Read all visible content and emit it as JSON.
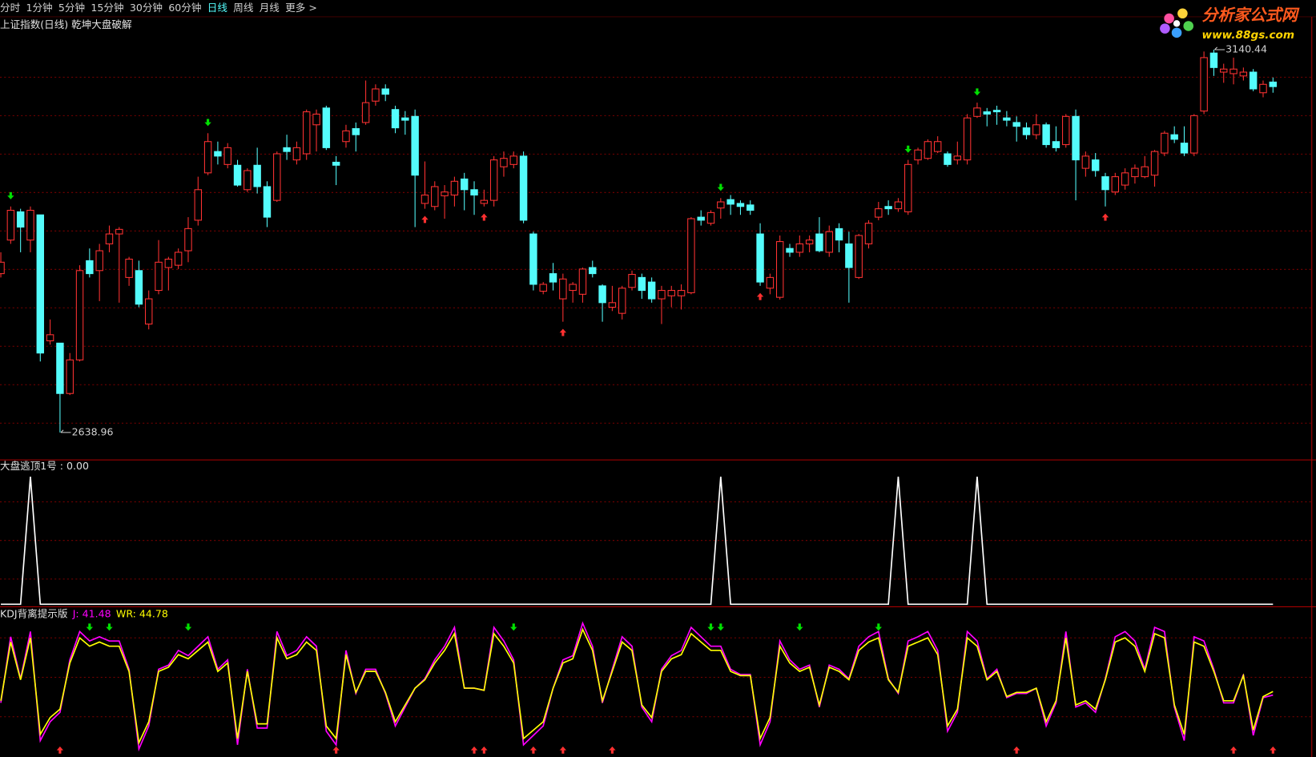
{
  "toolbar": {
    "items": [
      {
        "label": "分时"
      },
      {
        "label": "1分钟"
      },
      {
        "label": "5分钟"
      },
      {
        "label": "15分钟"
      },
      {
        "label": "30分钟"
      },
      {
        "label": "60分钟"
      },
      {
        "label": "日线",
        "active": true
      },
      {
        "label": "周线"
      },
      {
        "label": "月线"
      },
      {
        "label": "更多 >"
      }
    ]
  },
  "logo": {
    "name": "分析家公式网",
    "url": "www.88gs.com"
  },
  "chart_data": [
    {
      "type": "candlestick",
      "title": "上证指数(日线) 乾坤大盘破解",
      "up_color": "#ff3232",
      "down_color": "#54fcfc",
      "ylim": [
        2603,
        3156
      ],
      "high_label": "3140.44",
      "low_label": "2638.96",
      "ohlc": [
        [
          2847,
          2875,
          2842,
          2862
        ],
        [
          2891,
          2935,
          2886,
          2930
        ],
        [
          2928,
          2932,
          2875,
          2908
        ],
        [
          2891,
          2935,
          2875,
          2930
        ],
        [
          2924,
          2924,
          2732,
          2743
        ],
        [
          2759,
          2787,
          2754,
          2767
        ],
        [
          2756,
          2756,
          2638.96,
          2690
        ],
        [
          2690,
          2743,
          2688,
          2734
        ],
        [
          2734,
          2858,
          2732,
          2851
        ],
        [
          2864,
          2880,
          2842,
          2847
        ],
        [
          2851,
          2886,
          2811,
          2877
        ],
        [
          2886,
          2910,
          2875,
          2899
        ],
        [
          2899,
          2908,
          2809,
          2905
        ],
        [
          2842,
          2869,
          2831,
          2866
        ],
        [
          2851,
          2864,
          2803,
          2807
        ],
        [
          2781,
          2825,
          2774,
          2814
        ],
        [
          2825,
          2891,
          2820,
          2862
        ],
        [
          2855,
          2869,
          2825,
          2866
        ],
        [
          2858,
          2880,
          2853,
          2875
        ],
        [
          2877,
          2921,
          2862,
          2906
        ],
        [
          2917,
          2974,
          2910,
          2957
        ],
        [
          2979,
          3031,
          2976,
          3020
        ],
        [
          3007,
          3020,
          2990,
          3001
        ],
        [
          2990,
          3018,
          2985,
          3012
        ],
        [
          2989,
          2996,
          2961,
          2963
        ],
        [
          2957,
          2985,
          2954,
          2982
        ],
        [
          2989,
          3012,
          2952,
          2961
        ],
        [
          2961,
          2968,
          2908,
          2921
        ],
        [
          2943,
          3007,
          2941,
          3004
        ],
        [
          3012,
          3029,
          2996,
          3007
        ],
        [
          2996,
          3020,
          2990,
          3012
        ],
        [
          3004,
          3062,
          2996,
          3059
        ],
        [
          3042,
          3062,
          3007,
          3056
        ],
        [
          3064,
          3067,
          3009,
          3012
        ],
        [
          2993,
          3001,
          2963,
          2989
        ],
        [
          3020,
          3042,
          3012,
          3034
        ],
        [
          3037,
          3045,
          3007,
          3029
        ],
        [
          3045,
          3100,
          3042,
          3071
        ],
        [
          3073,
          3095,
          3067,
          3089
        ],
        [
          3089,
          3095,
          3073,
          3082
        ],
        [
          3062,
          3067,
          3031,
          3038
        ],
        [
          3051,
          3060,
          3029,
          3048
        ],
        [
          3053,
          3062,
          2908,
          2976
        ],
        [
          2939,
          2994,
          2932,
          2950
        ],
        [
          2935,
          2968,
          2930,
          2961
        ],
        [
          2949,
          2963,
          2919,
          2954
        ],
        [
          2950,
          2974,
          2935,
          2968
        ],
        [
          2971,
          2979,
          2930,
          2957
        ],
        [
          2957,
          2968,
          2924,
          2950
        ],
        [
          2939,
          2957,
          2935,
          2943
        ],
        [
          2943,
          3001,
          2935,
          2996
        ],
        [
          2987,
          3007,
          2974,
          2998
        ],
        [
          2990,
          3007,
          2985,
          3001
        ],
        [
          3001,
          3007,
          2913,
          2917
        ],
        [
          2899,
          2902,
          2825,
          2833
        ],
        [
          2824,
          2836,
          2820,
          2833
        ],
        [
          2847,
          2861,
          2825,
          2836
        ],
        [
          2814,
          2847,
          2784,
          2840
        ],
        [
          2825,
          2836,
          2809,
          2833
        ],
        [
          2820,
          2855,
          2809,
          2853
        ],
        [
          2855,
          2864,
          2842,
          2847
        ],
        [
          2831,
          2833,
          2784,
          2809
        ],
        [
          2803,
          2831,
          2798,
          2809
        ],
        [
          2795,
          2831,
          2787,
          2828
        ],
        [
          2829,
          2851,
          2825,
          2846
        ],
        [
          2842,
          2847,
          2814,
          2825
        ],
        [
          2836,
          2842,
          2809,
          2814
        ],
        [
          2814,
          2831,
          2781,
          2825
        ],
        [
          2818,
          2831,
          2803,
          2825
        ],
        [
          2818,
          2833,
          2800,
          2825
        ],
        [
          2822,
          2921,
          2820,
          2919
        ],
        [
          2921,
          2930,
          2910,
          2917
        ],
        [
          2913,
          2930,
          2910,
          2927
        ],
        [
          2933,
          2946,
          2919,
          2941
        ],
        [
          2944,
          2950,
          2924,
          2938
        ],
        [
          2939,
          2943,
          2924,
          2935
        ],
        [
          2937,
          2943,
          2924,
          2930
        ],
        [
          2899,
          2913,
          2831,
          2836
        ],
        [
          2828,
          2847,
          2820,
          2842
        ],
        [
          2816,
          2897,
          2813,
          2889
        ],
        [
          2880,
          2886,
          2869,
          2875
        ],
        [
          2875,
          2897,
          2869,
          2886
        ],
        [
          2886,
          2897,
          2875,
          2891
        ],
        [
          2899,
          2921,
          2875,
          2877
        ],
        [
          2875,
          2910,
          2869,
          2902
        ],
        [
          2906,
          2913,
          2875,
          2891
        ],
        [
          2886,
          2902,
          2809,
          2855
        ],
        [
          2842,
          2899,
          2840,
          2897
        ],
        [
          2886,
          2917,
          2880,
          2913
        ],
        [
          2921,
          2941,
          2917,
          2932
        ],
        [
          2935,
          2943,
          2924,
          2932
        ],
        [
          2932,
          2946,
          2928,
          2941
        ],
        [
          2928,
          2996,
          2924,
          2990
        ],
        [
          2996,
          3012,
          2990,
          3009
        ],
        [
          2998,
          3023,
          2996,
          3020
        ],
        [
          3007,
          3027,
          3005,
          3020
        ],
        [
          3004,
          3007,
          2987,
          2990
        ],
        [
          2996,
          3020,
          2990,
          3001
        ],
        [
          2996,
          3056,
          2990,
          3051
        ],
        [
          3053,
          3071,
          3051,
          3064
        ],
        [
          3059,
          3064,
          3040,
          3056
        ],
        [
          3061,
          3067,
          3042,
          3059
        ],
        [
          3051,
          3060,
          3040,
          3048
        ],
        [
          3045,
          3053,
          3020,
          3040
        ],
        [
          3038,
          3045,
          3023,
          3029
        ],
        [
          3029,
          3056,
          3023,
          3042
        ],
        [
          3042,
          3045,
          3012,
          3016
        ],
        [
          3020,
          3040,
          3007,
          3012
        ],
        [
          3016,
          3056,
          3012,
          3053
        ],
        [
          3053,
          3062,
          2943,
          2996
        ],
        [
          2985,
          3007,
          2974,
          3001
        ],
        [
          2996,
          3005,
          2974,
          2982
        ],
        [
          2974,
          2979,
          2935,
          2957
        ],
        [
          2954,
          2979,
          2950,
          2974
        ],
        [
          2963,
          2985,
          2957,
          2979
        ],
        [
          2974,
          2990,
          2965,
          2985
        ],
        [
          2974,
          3001,
          2972,
          2987
        ],
        [
          2976,
          3009,
          2961,
          3007
        ],
        [
          3005,
          3034,
          3001,
          3031
        ],
        [
          3029,
          3040,
          3018,
          3023
        ],
        [
          3018,
          3040,
          3001,
          3005
        ],
        [
          3005,
          3056,
          3001,
          3054
        ],
        [
          3060,
          3138,
          3056,
          3130
        ],
        [
          3136,
          3140.44,
          3106,
          3117
        ],
        [
          3111,
          3122,
          3097,
          3115
        ],
        [
          3109,
          3130,
          3095,
          3115
        ],
        [
          3106,
          3117,
          3100,
          3111
        ],
        [
          3111,
          3115,
          3086,
          3089
        ],
        [
          3084,
          3100,
          3078,
          3095
        ],
        [
          3098,
          3104,
          3084,
          3092
        ]
      ],
      "sell_markers": [
        1,
        21,
        73,
        92,
        99
      ],
      "buy_markers": [
        43,
        49,
        57,
        77,
        112
      ]
    },
    {
      "type": "line",
      "title": "大盘逃顶1号 : 0.00",
      "color": "#ffffff",
      "ylim": [
        -1.3,
        112.5
      ],
      "values": [
        0,
        0,
        0,
        100,
        0,
        0,
        0,
        0,
        0,
        0,
        0,
        0,
        0,
        0,
        0,
        0,
        0,
        0,
        0,
        0,
        0,
        0,
        0,
        0,
        0,
        0,
        0,
        0,
        0,
        0,
        0,
        0,
        0,
        0,
        0,
        0,
        0,
        0,
        0,
        0,
        0,
        0,
        0,
        0,
        0,
        0,
        0,
        0,
        0,
        0,
        0,
        0,
        0,
        0,
        0,
        0,
        0,
        0,
        0,
        0,
        0,
        0,
        0,
        0,
        0,
        0,
        0,
        0,
        0,
        0,
        0,
        0,
        0,
        100,
        0,
        0,
        0,
        0,
        0,
        0,
        0,
        0,
        0,
        0,
        0,
        0,
        0,
        0,
        0,
        0,
        0,
        100,
        0,
        0,
        0,
        0,
        0,
        0,
        0,
        100,
        0,
        0,
        0,
        0,
        0,
        0,
        0,
        0,
        0,
        0,
        0,
        0,
        0,
        0,
        0,
        0,
        0,
        0,
        0,
        0,
        0,
        0,
        0,
        0,
        0,
        0,
        0,
        0,
        0,
        0
      ]
    },
    {
      "type": "line",
      "title": "KDJ背离提示版",
      "ylim": [
        -17.6,
        124.8
      ],
      "series": [
        {
          "label": "J: 41.48",
          "color": "#ff00ff",
          "values": [
            34,
            97,
            57,
            102,
            -2,
            16,
            25,
            75,
            102,
            93,
            97,
            93,
            93,
            66,
            -10,
            12,
            66,
            70,
            84,
            79,
            88,
            97,
            66,
            75,
            -6,
            66,
            10,
            10,
            102,
            79,
            84,
            97,
            88,
            7,
            -6,
            84,
            43,
            66,
            66,
            43,
            12,
            30,
            48,
            57,
            75,
            88,
            106,
            48,
            48,
            46,
            106,
            93,
            75,
            -6,
            3,
            12,
            48,
            75,
            79,
            110,
            88,
            34,
            66,
            97,
            88,
            30,
            16,
            66,
            79,
            84,
            106,
            97,
            88,
            88,
            66,
            61,
            61,
            -6,
            16,
            93,
            75,
            66,
            70,
            30,
            70,
            66,
            57,
            88,
            97,
            102,
            57,
            43,
            93,
            97,
            102,
            84,
            7,
            25,
            102,
            93,
            57,
            66,
            39,
            43,
            43,
            48,
            12,
            34,
            102,
            30,
            34,
            25,
            57,
            97,
            102,
            93,
            66,
            106,
            102,
            30,
            -2,
            97,
            93,
            66,
            34,
            34,
            61,
            3,
            39,
            41.48
          ]
        },
        {
          "label": "WR: 44.78",
          "color": "#ffff00",
          "values": [
            36,
            92,
            56,
            96,
            4,
            20,
            28,
            72,
            96,
            88,
            92,
            88,
            88,
            64,
            -4,
            16,
            64,
            68,
            80,
            76,
            84,
            92,
            64,
            72,
            0,
            64,
            14,
            14,
            96,
            76,
            80,
            92,
            84,
            12,
            0,
            80,
            44,
            64,
            64,
            44,
            16,
            32,
            48,
            56,
            72,
            84,
            100,
            48,
            48,
            46,
            100,
            88,
            72,
            0,
            8,
            16,
            48,
            72,
            76,
            104,
            84,
            36,
            64,
            92,
            84,
            32,
            20,
            64,
            76,
            80,
            100,
            92,
            84,
            84,
            64,
            60,
            60,
            0,
            20,
            88,
            72,
            64,
            68,
            32,
            68,
            64,
            56,
            84,
            92,
            96,
            56,
            44,
            88,
            92,
            96,
            80,
            12,
            28,
            96,
            88,
            56,
            64,
            40,
            44,
            44,
            48,
            16,
            36,
            96,
            32,
            36,
            28,
            56,
            92,
            96,
            88,
            64,
            100,
            96,
            32,
            4,
            92,
            88,
            64,
            36,
            36,
            60,
            8,
            40,
            44.78
          ]
        }
      ],
      "sell_markers": [
        9,
        11,
        19,
        52,
        72,
        73,
        81,
        89
      ],
      "buy_markers": [
        6,
        34,
        48,
        49,
        54,
        57,
        62,
        103,
        125,
        129
      ]
    }
  ]
}
